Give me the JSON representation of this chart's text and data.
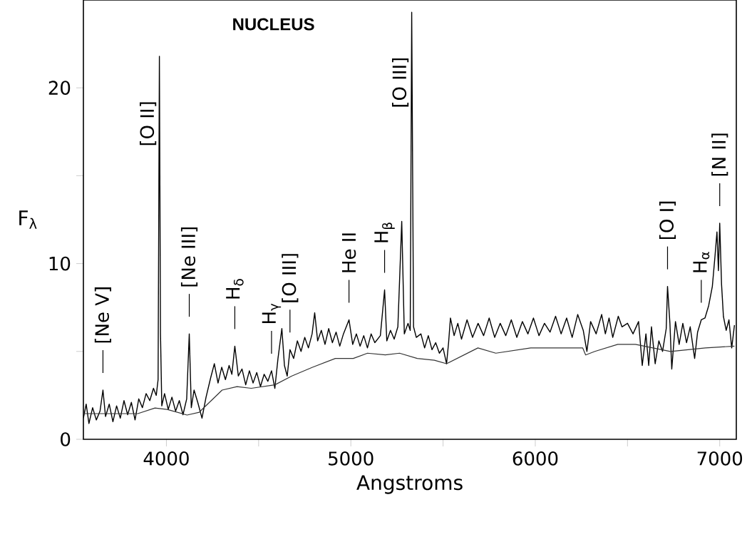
{
  "chart_data": {
    "type": "line",
    "title": "NUCLEUS",
    "xlabel": "Angstroms",
    "ylabel": "F$_{λ}$",
    "xlim": [
      3550,
      7090
    ],
    "ylim": [
      0,
      25
    ],
    "xticks": [
      4000,
      {
        "value": 4500,
        "label": null
      },
      5000,
      {
        "value": 5500,
        "label": null
      },
      6000,
      {
        "value": 6500,
        "label": null
      },
      7000
    ],
    "yticks": [
      0,
      {
        "value": 5,
        "label": null
      },
      10,
      {
        "value": 15,
        "label": null
      },
      20
    ],
    "series": [
      {
        "color": "#000000",
        "x": [
          3550,
          3565,
          3580,
          3600,
          3620,
          3640,
          3656,
          3670,
          3690,
          3710,
          3730,
          3750,
          3770,
          3790,
          3810,
          3830,
          3850,
          3870,
          3890,
          3910,
          3930,
          3945,
          3955,
          3962,
          3968,
          3975,
          3990,
          4010,
          4030,
          4050,
          4070,
          4090,
          4110,
          4124,
          4135,
          4150,
          4170,
          4193,
          4215,
          4240,
          4260,
          4280,
          4300,
          4320,
          4340,
          4355,
          4371,
          4390,
          4410,
          4430,
          4450,
          4470,
          4490,
          4510,
          4530,
          4550,
          4570,
          4588,
          4605,
          4626,
          4640,
          4655,
          4670,
          4690,
          4710,
          4730,
          4750,
          4770,
          4790,
          4804,
          4820,
          4840,
          4860,
          4880,
          4900,
          4920,
          4940,
          4960,
          4990,
          5010,
          5030,
          5050,
          5070,
          5090,
          5110,
          5130,
          5160,
          5183,
          5195,
          5215,
          5235,
          5255,
          5276,
          5290,
          5310,
          5322,
          5330,
          5340,
          5355,
          5380,
          5400,
          5420,
          5440,
          5460,
          5480,
          5500,
          5519,
          5530,
          5540,
          5560,
          5580,
          5600,
          5630,
          5660,
          5690,
          5720,
          5750,
          5780,
          5810,
          5840,
          5870,
          5900,
          5930,
          5960,
          5990,
          6020,
          6050,
          6080,
          6110,
          6140,
          6170,
          6200,
          6230,
          6260,
          6280,
          6300,
          6330,
          6360,
          6380,
          6400,
          6420,
          6450,
          6470,
          6500,
          6530,
          6560,
          6580,
          6600,
          6615,
          6630,
          6650,
          6670,
          6690,
          6710,
          6717,
          6730,
          6740,
          6760,
          6780,
          6800,
          6820,
          6840,
          6864,
          6880,
          6900,
          6920,
          6940,
          6960,
          6975,
          6985,
          6993,
          7000,
          7010,
          7020,
          7035,
          7050,
          7065,
          7080
        ],
        "values": [
          1.2,
          2.0,
          0.9,
          1.8,
          1.1,
          1.6,
          2.8,
          1.3,
          2.0,
          1.0,
          1.9,
          1.2,
          2.2,
          1.4,
          2.1,
          1.1,
          2.3,
          1.8,
          2.6,
          2.2,
          2.9,
          2.5,
          3.4,
          21.8,
          6.0,
          1.9,
          2.6,
          1.7,
          2.4,
          1.6,
          2.2,
          1.4,
          2.3,
          6.0,
          1.8,
          2.8,
          2.1,
          1.2,
          2.4,
          3.5,
          4.3,
          3.2,
          4.1,
          3.4,
          4.2,
          3.7,
          5.3,
          3.6,
          4.0,
          3.1,
          3.9,
          3.2,
          3.8,
          3.0,
          3.7,
          3.3,
          3.9,
          2.9,
          4.6,
          6.3,
          4.2,
          3.6,
          5.1,
          4.6,
          5.6,
          5.0,
          5.8,
          5.2,
          6.0,
          7.2,
          5.6,
          6.2,
          5.4,
          6.3,
          5.5,
          6.1,
          5.3,
          6.0,
          6.8,
          5.4,
          6.0,
          5.3,
          5.9,
          5.2,
          6.0,
          5.5,
          5.9,
          8.5,
          5.6,
          6.2,
          5.7,
          6.4,
          12.4,
          6.0,
          6.6,
          6.2,
          24.3,
          6.4,
          5.8,
          6.0,
          5.2,
          5.9,
          5.1,
          5.5,
          4.9,
          5.2,
          4.3,
          5.5,
          6.9,
          5.9,
          6.6,
          5.7,
          6.8,
          5.8,
          6.6,
          5.9,
          6.9,
          5.8,
          6.6,
          5.9,
          6.8,
          5.8,
          6.7,
          6.0,
          6.9,
          5.9,
          6.6,
          6.1,
          7.0,
          6.0,
          6.9,
          5.8,
          7.1,
          6.2,
          5.0,
          6.7,
          6.0,
          7.1,
          6.0,
          6.9,
          5.8,
          7.0,
          6.4,
          6.6,
          6.0,
          6.7,
          4.2,
          6.0,
          4.2,
          6.4,
          4.3,
          5.6,
          5.0,
          6.3,
          8.7,
          6.6,
          4.0,
          6.7,
          5.4,
          6.6,
          5.5,
          6.4,
          4.6,
          6.1,
          6.8,
          6.9,
          7.6,
          8.7,
          10.5,
          11.8,
          9.6,
          12.3,
          8.8,
          7.0,
          6.2,
          6.8,
          5.2,
          6.5
        ]
      },
      {
        "color": "#333333",
        "x": [
          3550,
          3845,
          3938,
          4004,
          4112,
          4178,
          4302,
          4383,
          4460,
          4588,
          4680,
          4792,
          4916,
          5013,
          5090,
          5187,
          5264,
          5360,
          5453,
          5519,
          5689,
          5786,
          5975,
          6257,
          6273,
          6323,
          6447,
          6543,
          6733,
          6922,
          7080
        ],
        "values": [
          1.46,
          1.46,
          1.78,
          1.7,
          1.38,
          1.54,
          2.8,
          3.0,
          2.9,
          3.1,
          3.6,
          4.1,
          4.6,
          4.6,
          4.9,
          4.8,
          4.9,
          4.6,
          4.5,
          4.3,
          5.2,
          4.9,
          5.2,
          5.2,
          4.8,
          5.0,
          5.4,
          5.4,
          5.0,
          5.2,
          5.3
        ]
      }
    ],
    "annotations": [
      {
        "text": "[Ne V]",
        "x": 3656,
        "y": 2.8
      },
      {
        "text": "[O II]",
        "x": 3962,
        "y": 21.8
      },
      {
        "text": "[Ne III]",
        "x": 4124,
        "y": 6.0
      },
      {
        "text": "H$_{δ}$",
        "x": 4371,
        "y": 5.3
      },
      {
        "text": "H$_{γ}$",
        "x": 4570,
        "y": 3.9
      },
      {
        "text": "[O III]",
        "x": 4670,
        "y": 5.1
      },
      {
        "text": "He II",
        "x": 4990,
        "y": 6.8
      },
      {
        "text": "H$_{β}$",
        "x": 5183,
        "y": 8.5
      },
      {
        "text": "[O III]",
        "x": 5330,
        "y": 24.3
      },
      {
        "text": "[O I]",
        "x": 6717,
        "y": 8.7
      },
      {
        "text": "H$_{α}$",
        "x": 6900,
        "y": 6.8
      },
      {
        "text": "[N II]",
        "x": 7000,
        "y": 12.3
      }
    ]
  }
}
